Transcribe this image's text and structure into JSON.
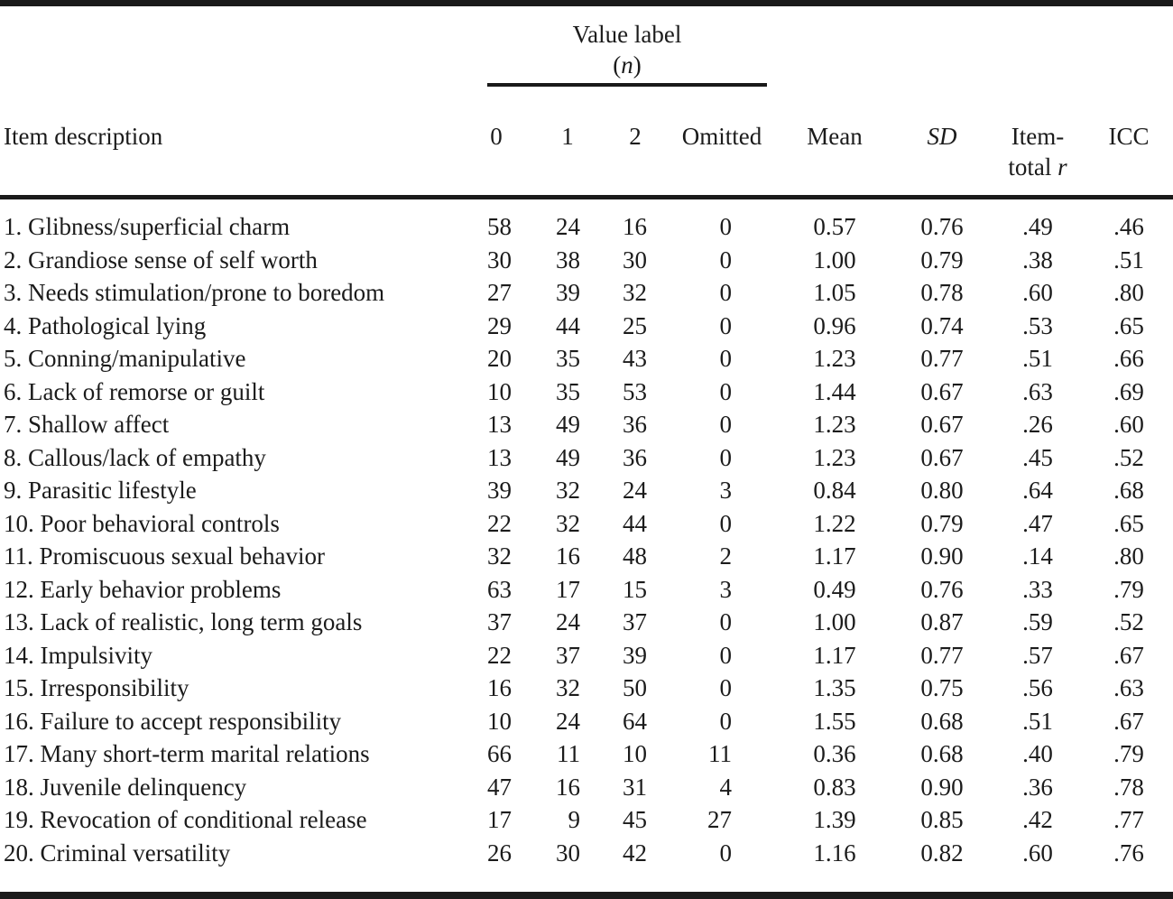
{
  "page": {
    "background": "#ffffff",
    "text_color": "#1b1b1b",
    "rule_color": "#1a1a1a"
  },
  "table": {
    "spanner": {
      "title": "Value label",
      "open_paren": "(",
      "var": "n",
      "close_paren": ")"
    },
    "columns": {
      "item": "Item description",
      "v0": "0",
      "v1": "1",
      "v2": "2",
      "omitted": "Omitted",
      "mean": "Mean",
      "sd": "SD",
      "item_total_line1": "Item-",
      "item_total_line2": "total",
      "item_total_var": "r",
      "icc": "ICC"
    },
    "rows": [
      {
        "item": "1. Glibness/superficial charm",
        "v0": "58",
        "v1": "24",
        "v2": "16",
        "omitted": "0",
        "mean": "0.57",
        "sd": "0.76",
        "r": ".49",
        "icc": ".46"
      },
      {
        "item": "2. Grandiose sense of self worth",
        "v0": "30",
        "v1": "38",
        "v2": "30",
        "omitted": "0",
        "mean": "1.00",
        "sd": "0.79",
        "r": ".38",
        "icc": ".51"
      },
      {
        "item": "3. Needs stimulation/prone to boredom",
        "v0": "27",
        "v1": "39",
        "v2": "32",
        "omitted": "0",
        "mean": "1.05",
        "sd": "0.78",
        "r": ".60",
        "icc": ".80"
      },
      {
        "item": "4. Pathological lying",
        "v0": "29",
        "v1": "44",
        "v2": "25",
        "omitted": "0",
        "mean": "0.96",
        "sd": "0.74",
        "r": ".53",
        "icc": ".65"
      },
      {
        "item": "5. Conning/manipulative",
        "v0": "20",
        "v1": "35",
        "v2": "43",
        "omitted": "0",
        "mean": "1.23",
        "sd": "0.77",
        "r": ".51",
        "icc": ".66"
      },
      {
        "item": "6. Lack of remorse or guilt",
        "v0": "10",
        "v1": "35",
        "v2": "53",
        "omitted": "0",
        "mean": "1.44",
        "sd": "0.67",
        "r": ".63",
        "icc": ".69"
      },
      {
        "item": "7. Shallow affect",
        "v0": "13",
        "v1": "49",
        "v2": "36",
        "omitted": "0",
        "mean": "1.23",
        "sd": "0.67",
        "r": ".26",
        "icc": ".60"
      },
      {
        "item": "8. Callous/lack of empathy",
        "v0": "13",
        "v1": "49",
        "v2": "36",
        "omitted": "0",
        "mean": "1.23",
        "sd": "0.67",
        "r": ".45",
        "icc": ".52"
      },
      {
        "item": "9. Parasitic lifestyle",
        "v0": "39",
        "v1": "32",
        "v2": "24",
        "omitted": "3",
        "mean": "0.84",
        "sd": "0.80",
        "r": ".64",
        "icc": ".68"
      },
      {
        "item": "10. Poor behavioral controls",
        "v0": "22",
        "v1": "32",
        "v2": "44",
        "omitted": "0",
        "mean": "1.22",
        "sd": "0.79",
        "r": ".47",
        "icc": ".65"
      },
      {
        "item": "11. Promiscuous sexual behavior",
        "v0": "32",
        "v1": "16",
        "v2": "48",
        "omitted": "2",
        "mean": "1.17",
        "sd": "0.90",
        "r": ".14",
        "icc": ".80"
      },
      {
        "item": "12. Early behavior problems",
        "v0": "63",
        "v1": "17",
        "v2": "15",
        "omitted": "3",
        "mean": "0.49",
        "sd": "0.76",
        "r": ".33",
        "icc": ".79"
      },
      {
        "item": "13. Lack of realistic, long term goals",
        "v0": "37",
        "v1": "24",
        "v2": "37",
        "omitted": "0",
        "mean": "1.00",
        "sd": "0.87",
        "r": ".59",
        "icc": ".52"
      },
      {
        "item": "14. Impulsivity",
        "v0": "22",
        "v1": "37",
        "v2": "39",
        "omitted": "0",
        "mean": "1.17",
        "sd": "0.77",
        "r": ".57",
        "icc": ".67"
      },
      {
        "item": "15. Irresponsibility",
        "v0": "16",
        "v1": "32",
        "v2": "50",
        "omitted": "0",
        "mean": "1.35",
        "sd": "0.75",
        "r": ".56",
        "icc": ".63"
      },
      {
        "item": "16. Failure to accept responsibility",
        "v0": "10",
        "v1": "24",
        "v2": "64",
        "omitted": "0",
        "mean": "1.55",
        "sd": "0.68",
        "r": ".51",
        "icc": ".67"
      },
      {
        "item": "17. Many short-term marital relations",
        "v0": "66",
        "v1": "11",
        "v2": "10",
        "omitted": "11",
        "mean": "0.36",
        "sd": "0.68",
        "r": ".40",
        "icc": ".79"
      },
      {
        "item": "18. Juvenile delinquency",
        "v0": "47",
        "v1": "16",
        "v2": "31",
        "omitted": "4",
        "mean": "0.83",
        "sd": "0.90",
        "r": ".36",
        "icc": ".78"
      },
      {
        "item": "19. Revocation of conditional release",
        "v0": "17",
        "v1": "9",
        "v2": "45",
        "omitted": "27",
        "mean": "1.39",
        "sd": "0.85",
        "r": ".42",
        "icc": ".77"
      },
      {
        "item": "20. Criminal versatility",
        "v0": "26",
        "v1": "30",
        "v2": "42",
        "omitted": "0",
        "mean": "1.16",
        "sd": "0.82",
        "r": ".60",
        "icc": ".76"
      }
    ]
  }
}
